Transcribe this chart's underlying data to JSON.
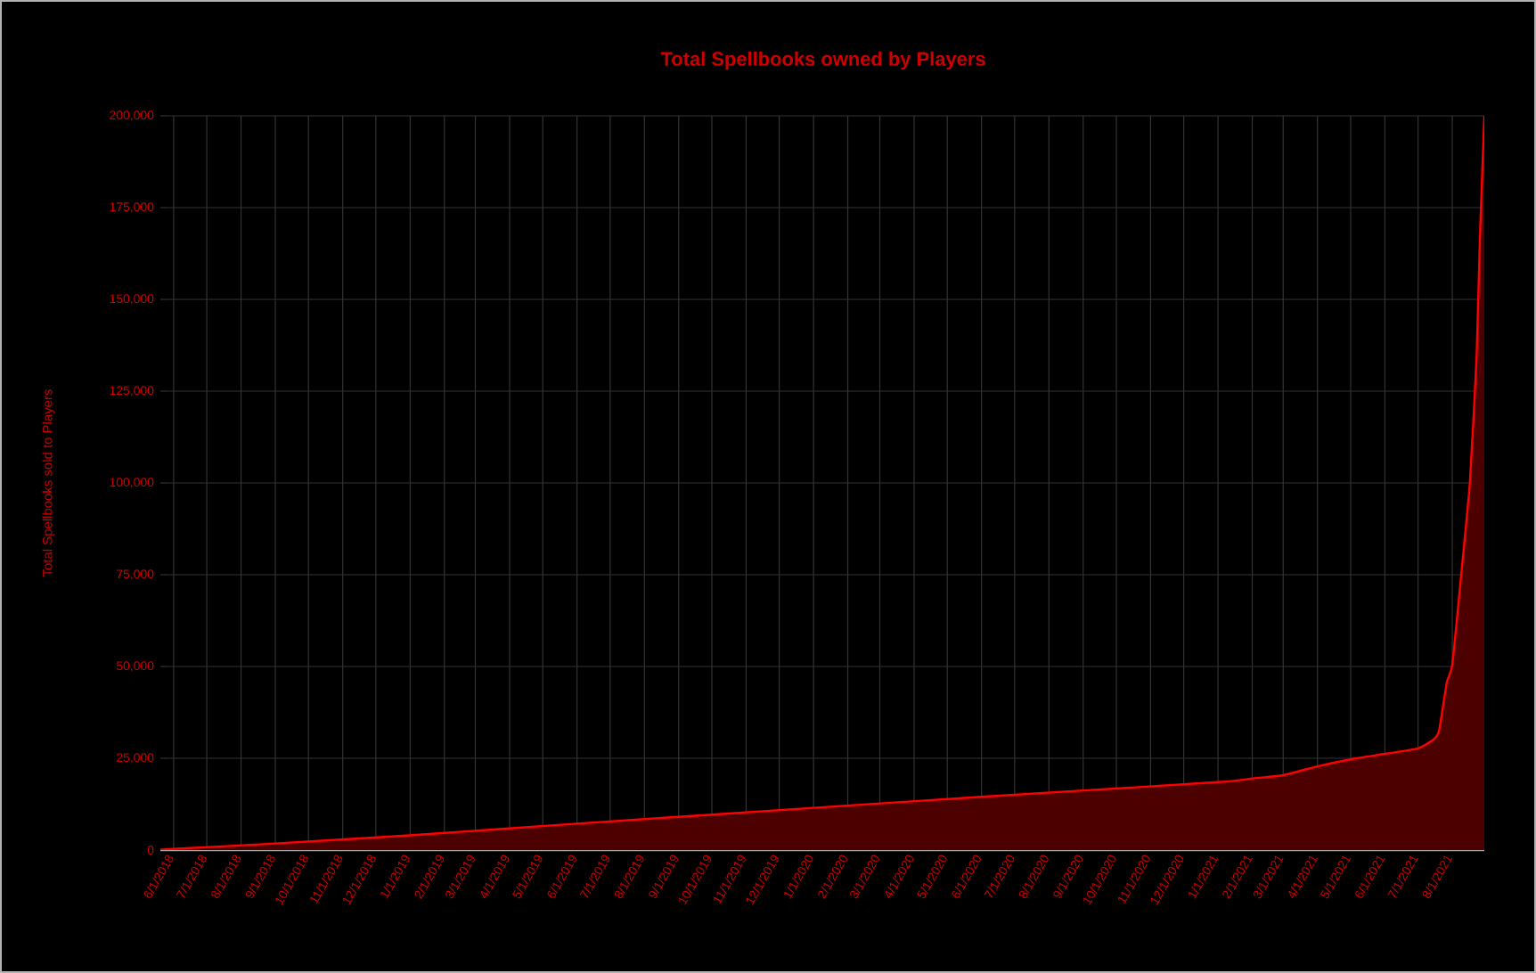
{
  "chart_data": {
    "type": "area",
    "title": "Total Spellbooks owned by Players",
    "ylabel": "Total Spellbooks sold to Players",
    "x": [
      "2018-05-20",
      "2018-06-01",
      "2018-09-01",
      "2019-01-01",
      "2019-06-01",
      "2020-01-01",
      "2020-06-01",
      "2021-01-01",
      "2021-02-01",
      "2021-03-01",
      "2021-04-01",
      "2021-05-01",
      "2021-06-01",
      "2021-07-01",
      "2021-07-15",
      "2021-07-20",
      "2021-07-27",
      "2021-08-01",
      "2021-08-09",
      "2021-08-17",
      "2021-08-23",
      "2021-08-26",
      "2021-08-30"
    ],
    "series": [
      {
        "color": "#ff0000",
        "values": [
          0,
          300,
          1800,
          4000,
          7200,
          11500,
          14500,
          18500,
          19500,
          20400,
          22800,
          24700,
          26200,
          27700,
          30100,
          32500,
          45600,
          50500,
          74800,
          100500,
          134500,
          167000,
          200000
        ]
      }
    ],
    "xlim": [
      "2018-05-20",
      "2021-08-30"
    ],
    "ylim": [
      0,
      200000
    ],
    "yticks": [
      {
        "value": 0,
        "label": "0"
      },
      {
        "value": 25000,
        "label": "25,000"
      },
      {
        "value": 50000,
        "label": "50,000"
      },
      {
        "value": 75000,
        "label": "75,000"
      },
      {
        "value": 100000,
        "label": "100,000"
      },
      {
        "value": 125000,
        "label": "125,000"
      },
      {
        "value": 150000,
        "label": "150,000"
      },
      {
        "value": 175000,
        "label": "175,000"
      },
      {
        "value": 200000,
        "label": "200,000"
      }
    ],
    "xticks": [
      {
        "value": "2018-06-01",
        "label": "6/1/2018"
      },
      {
        "value": "2018-07-01",
        "label": "7/1/2018"
      },
      {
        "value": "2018-08-01",
        "label": "8/1/2018"
      },
      {
        "value": "2018-09-01",
        "label": "9/1/2018"
      },
      {
        "value": "2018-10-01",
        "label": "10/1/2018"
      },
      {
        "value": "2018-11-01",
        "label": "11/1/2018"
      },
      {
        "value": "2018-12-01",
        "label": "12/1/2018"
      },
      {
        "value": "2019-01-01",
        "label": "1/1/2019"
      },
      {
        "value": "2019-02-01",
        "label": "2/1/2019"
      },
      {
        "value": "2019-03-01",
        "label": "3/1/2019"
      },
      {
        "value": "2019-04-01",
        "label": "4/1/2019"
      },
      {
        "value": "2019-05-01",
        "label": "5/1/2019"
      },
      {
        "value": "2019-06-01",
        "label": "6/1/2019"
      },
      {
        "value": "2019-07-01",
        "label": "7/1/2019"
      },
      {
        "value": "2019-08-01",
        "label": "8/1/2019"
      },
      {
        "value": "2019-09-01",
        "label": "9/1/2019"
      },
      {
        "value": "2019-10-01",
        "label": "10/1/2019"
      },
      {
        "value": "2019-11-01",
        "label": "11/1/2019"
      },
      {
        "value": "2019-12-01",
        "label": "12/1/2019"
      },
      {
        "value": "2020-01-01",
        "label": "1/1/2020"
      },
      {
        "value": "2020-02-01",
        "label": "2/1/2020"
      },
      {
        "value": "2020-03-01",
        "label": "3/1/2020"
      },
      {
        "value": "2020-04-01",
        "label": "4/1/2020"
      },
      {
        "value": "2020-05-01",
        "label": "5/1/2020"
      },
      {
        "value": "2020-06-01",
        "label": "6/1/2020"
      },
      {
        "value": "2020-07-01",
        "label": "7/1/2020"
      },
      {
        "value": "2020-08-01",
        "label": "8/1/2020"
      },
      {
        "value": "2020-09-01",
        "label": "9/1/2020"
      },
      {
        "value": "2020-10-01",
        "label": "10/1/2020"
      },
      {
        "value": "2020-11-01",
        "label": "11/1/2020"
      },
      {
        "value": "2020-12-01",
        "label": "12/1/2020"
      },
      {
        "value": "2021-01-01",
        "label": "1/1/2021"
      },
      {
        "value": "2021-02-01",
        "label": "2/1/2021"
      },
      {
        "value": "2021-03-01",
        "label": "3/1/2021"
      },
      {
        "value": "2021-04-01",
        "label": "4/1/2021"
      },
      {
        "value": "2021-05-01",
        "label": "5/1/2021"
      },
      {
        "value": "2021-06-01",
        "label": "6/1/2021"
      },
      {
        "value": "2021-07-01",
        "label": "7/1/2021"
      },
      {
        "value": "2021-08-01",
        "label": "8/1/2021"
      }
    ],
    "grid": true
  }
}
